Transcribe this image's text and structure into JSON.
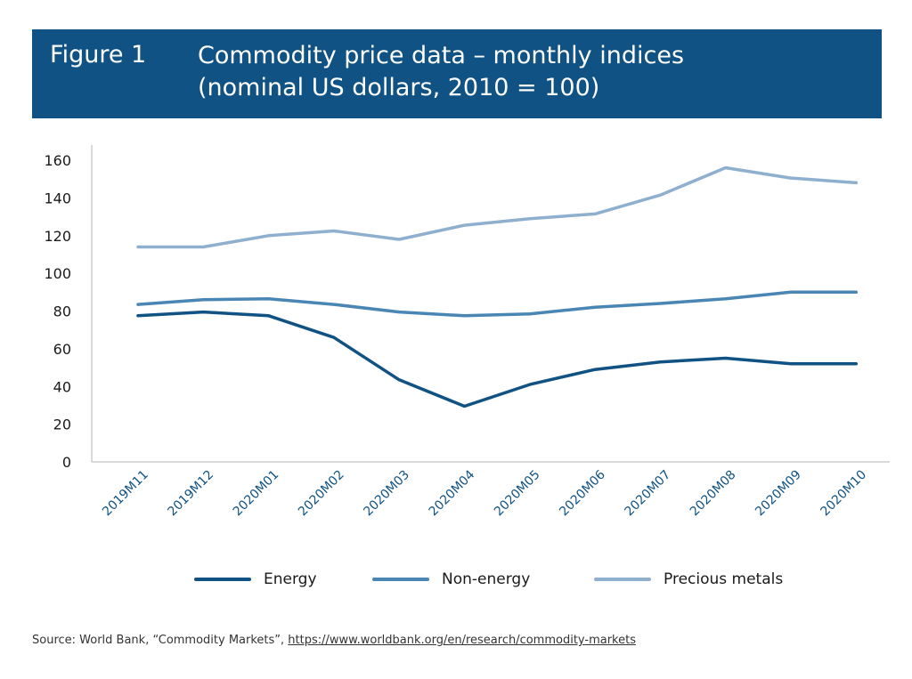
{
  "header": {
    "figure_label": "Figure 1",
    "title_line1": "Commodity price data – monthly indices",
    "title_line2": "(nominal US dollars, 2010 = 100)"
  },
  "colors": {
    "banner": "#0f5283",
    "energy": "#0f5283",
    "non_energy": "#4a86b4",
    "precious_metals": "#8fafcf"
  },
  "chart_data": {
    "type": "line",
    "categories": [
      "2019M11",
      "2019M12",
      "2020M01",
      "2020M02",
      "2020M03",
      "2020M04",
      "2020M05",
      "2020M06",
      "2020M07",
      "2020M08",
      "2020M09",
      "2020M10"
    ],
    "series": [
      {
        "name": "Energy",
        "color": "#0f5283",
        "values": [
          77.5,
          79.5,
          77.5,
          66,
          43.5,
          29.5,
          41,
          49,
          53,
          55,
          52,
          52
        ]
      },
      {
        "name": "Non-energy",
        "color": "#4a86b4",
        "values": [
          83.5,
          86,
          86.5,
          83.5,
          79.5,
          77.5,
          78.5,
          82,
          84,
          86.5,
          90,
          90
        ]
      },
      {
        "name": "Precious metals",
        "color": "#8fafcf",
        "values": [
          114,
          114,
          120,
          122.5,
          118,
          125.5,
          129,
          131.5,
          141.5,
          156,
          150.5,
          148
        ]
      }
    ],
    "ylim": [
      0,
      160
    ],
    "yticks": [
      0,
      20,
      40,
      60,
      80,
      100,
      120,
      140,
      160
    ],
    "xlabel": "",
    "ylabel": "",
    "legend_position": "bottom"
  },
  "legend": {
    "energy": "Energy",
    "non_energy": "Non-energy",
    "precious_metals": "Precious metals"
  },
  "source": {
    "prefix": "Source: World Bank, “Commodity Markets”, ",
    "link": "https://www.worldbank.org/en/research/commodity-markets"
  }
}
